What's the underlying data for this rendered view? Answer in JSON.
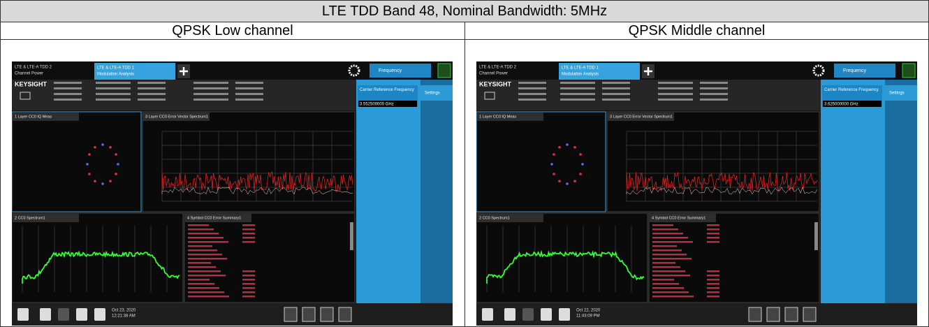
{
  "header": {
    "title": "LTE TDD Band 48, Nominal Bandwidth: 5MHz"
  },
  "panels": [
    {
      "label": "QPSK Low channel",
      "screen": {
        "tab_1": "LTE & LTE-A TDD 2",
        "tab_1_sub": "Channel Power",
        "tab_2": "LTE & LTE-A TDD 1",
        "tab_2_sub": "Modulation Analysis",
        "brand": "KEYSIGHT",
        "menu": "Frequency",
        "field": "Carrier Reference Frequency",
        "field_value": "3.552500000 GHz",
        "side_tab": "Settings",
        "windows": [
          "1 Layer CC0 IQ Meas",
          "3 Layer CC0 Error Vector Spectrum1",
          "2 CC0 Spectrum1",
          "4 Symbol CC0 Error Summary1"
        ],
        "date": "Oct 23, 2020",
        "time": "12:21:38 AM"
      }
    },
    {
      "label": "QPSK Middle channel",
      "screen": {
        "tab_1": "LTE & LTE-A TDD 2",
        "tab_1_sub": "Channel Power",
        "tab_2": "LTE & LTE-A TDD 1",
        "tab_2_sub": "Modulation Analysis",
        "brand": "KEYSIGHT",
        "menu": "Frequency",
        "field": "Carrier Reference Frequency",
        "field_value": "3.625000000 GHz",
        "side_tab": "Settings",
        "windows": [
          "1 Layer CC0 IQ Meas",
          "3 Layer CC0 Error Vector Spectrum1",
          "2 CC0 Spectrum1",
          "4 Symbol CC0 Error Summary1"
        ],
        "date": "Oct 22, 2020",
        "time": "11:43:09 PM"
      }
    }
  ]
}
